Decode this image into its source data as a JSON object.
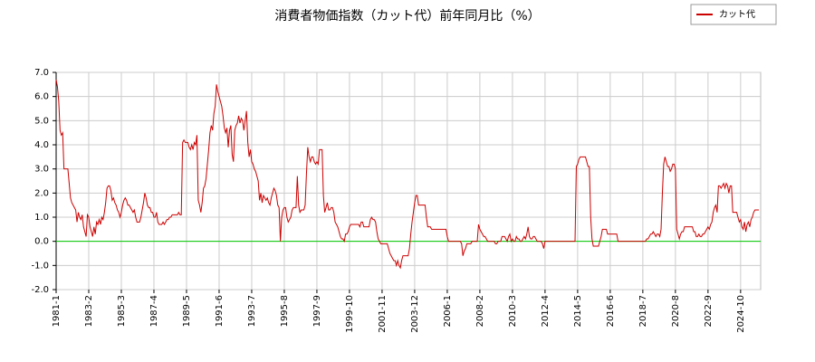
{
  "chart_data": {
    "type": "line",
    "title": "消費者物価指数（カット代）前年同月比（%）",
    "categories": [
      "1981-1",
      null,
      null,
      null,
      null,
      null,
      null,
      null,
      null,
      null,
      null,
      null,
      null,
      null,
      null,
      null,
      null,
      null,
      null,
      null,
      null,
      null,
      null,
      null,
      null,
      "1983-2",
      null,
      null,
      null,
      null,
      null,
      null,
      null,
      null,
      null,
      null,
      null,
      null,
      null,
      null,
      null,
      null,
      null,
      null,
      null,
      null,
      null,
      null,
      null,
      null,
      "1985-3",
      null,
      null,
      null,
      null,
      null,
      null,
      null,
      null,
      null,
      null,
      null,
      null,
      null,
      null,
      null,
      null,
      null,
      null,
      null,
      null,
      null,
      null,
      null,
      null,
      "1987-4",
      null,
      null,
      null,
      null,
      null,
      null,
      null,
      null,
      null,
      null,
      null,
      null,
      null,
      null,
      null,
      null,
      null,
      null,
      null,
      null,
      null,
      null,
      null,
      null,
      "1989-5",
      null,
      null,
      null,
      null,
      null,
      null,
      null,
      null,
      null,
      null,
      null,
      null,
      null,
      null,
      null,
      null,
      null,
      null,
      null,
      null,
      null,
      null,
      null,
      null,
      "1991-6",
      null,
      null,
      null,
      null,
      null,
      null,
      null,
      null,
      null,
      null,
      null,
      null,
      null,
      null,
      null,
      null,
      null,
      null,
      null,
      null,
      null,
      null,
      null,
      null,
      "1993-7",
      null,
      null,
      null,
      null,
      null,
      null,
      null,
      null,
      null,
      null,
      null,
      null,
      null,
      null,
      null,
      null,
      null,
      null,
      null,
      null,
      null,
      null,
      null,
      null,
      "1995-8",
      null,
      null,
      null,
      null,
      null,
      null,
      null,
      null,
      null,
      null,
      null,
      null,
      null,
      null,
      null,
      null,
      null,
      null,
      null,
      null,
      null,
      null,
      null,
      null,
      "1997-9",
      null,
      null,
      null,
      null,
      null,
      null,
      null,
      null,
      null,
      null,
      null,
      null,
      null,
      null,
      null,
      null,
      null,
      null,
      null,
      null,
      null,
      null,
      null,
      null,
      "1999-10",
      null,
      null,
      null,
      null,
      null,
      null,
      null,
      null,
      null,
      null,
      null,
      null,
      null,
      null,
      null,
      null,
      null,
      null,
      null,
      null,
      null,
      null,
      null,
      null,
      "2001-11",
      null,
      null,
      null,
      null,
      null,
      null,
      null,
      null,
      null,
      null,
      null,
      null,
      null,
      null,
      null,
      null,
      null,
      null,
      null,
      null,
      null,
      null,
      null,
      null,
      "2003-12",
      null,
      null,
      null,
      null,
      null,
      null,
      null,
      null,
      null,
      null,
      null,
      null,
      null,
      null,
      null,
      null,
      null,
      null,
      null,
      null,
      null,
      null,
      null,
      null,
      "2006-1",
      null,
      null,
      null,
      null,
      null,
      null,
      null,
      null,
      null,
      null,
      null,
      null,
      null,
      null,
      null,
      null,
      null,
      null,
      null,
      null,
      null,
      null,
      null,
      null,
      "2008-2",
      null,
      null,
      null,
      null,
      null,
      null,
      null,
      null,
      null,
      null,
      null,
      null,
      null,
      null,
      null,
      null,
      null,
      null,
      null,
      null,
      null,
      null,
      null,
      null,
      "2010-3",
      null,
      null,
      null,
      null,
      null,
      null,
      null,
      null,
      null,
      null,
      null,
      null,
      null,
      null,
      null,
      null,
      null,
      null,
      null,
      null,
      null,
      null,
      null,
      null,
      "2012-4",
      null,
      null,
      null,
      null,
      null,
      null,
      null,
      null,
      null,
      null,
      null,
      null,
      null,
      null,
      null,
      null,
      null,
      null,
      null,
      null,
      null,
      null,
      null,
      null,
      "2014-5",
      null,
      null,
      null,
      null,
      null,
      null,
      null,
      null,
      null,
      null,
      null,
      null,
      null,
      null,
      null,
      null,
      null,
      null,
      null,
      null,
      null,
      null,
      null,
      null,
      "2016-6",
      null,
      null,
      null,
      null,
      null,
      null,
      null,
      null,
      null,
      null,
      null,
      null,
      null,
      null,
      null,
      null,
      null,
      null,
      null,
      null,
      null,
      null,
      null,
      null,
      "2018-7",
      null,
      null,
      null,
      null,
      null,
      null,
      null,
      null,
      null,
      null,
      null,
      null,
      null,
      null,
      null,
      null,
      null,
      null,
      null,
      null,
      null,
      null,
      null,
      null,
      "2020-8",
      null,
      null,
      null,
      null,
      null,
      null,
      null,
      null,
      null,
      null,
      null,
      null,
      null,
      null,
      null,
      null,
      null,
      null,
      null,
      null,
      null,
      null,
      null,
      null,
      "2022-9",
      null,
      null,
      null,
      null,
      null,
      null,
      null,
      null,
      null,
      null,
      null,
      null,
      null,
      null,
      null,
      null,
      null,
      null,
      null,
      null,
      null,
      null,
      null,
      null,
      "2024-10",
      null,
      null,
      null,
      null,
      null,
      null,
      null,
      null,
      null,
      null,
      null,
      null,
      null,
      null
    ],
    "series": [
      {
        "name": "カット代",
        "color": "#cc0000",
        "values": [
          6.7,
          6.4,
          5.8,
          4.6,
          4.4,
          4.5,
          3.0,
          3.0,
          3.0,
          3.0,
          2.4,
          1.8,
          1.6,
          1.5,
          1.4,
          1.3,
          0.8,
          1.2,
          1.0,
          0.9,
          1.1,
          0.6,
          0.4,
          0.2,
          1.1,
          1.0,
          0.6,
          0.4,
          0.2,
          0.6,
          0.3,
          0.8,
          0.7,
          0.9,
          0.7,
          1.0,
          0.9,
          1.2,
          1.6,
          2.2,
          2.3,
          2.3,
          2.1,
          1.7,
          1.8,
          1.6,
          1.5,
          1.3,
          1.2,
          1.0,
          1.2,
          1.5,
          1.7,
          1.8,
          1.7,
          1.5,
          1.5,
          1.4,
          1.3,
          1.2,
          1.3,
          1.0,
          0.8,
          0.8,
          0.8,
          1.0,
          1.3,
          1.6,
          2.0,
          1.8,
          1.5,
          1.4,
          1.4,
          1.2,
          1.2,
          1.0,
          1.0,
          1.2,
          0.8,
          0.7,
          0.7,
          0.7,
          0.8,
          0.7,
          0.8,
          0.9,
          0.9,
          1.0,
          1.0,
          1.1,
          1.1,
          1.1,
          1.1,
          1.1,
          1.2,
          1.1,
          1.1,
          4.1,
          4.2,
          4.1,
          4.1,
          4.1,
          3.9,
          3.8,
          4.0,
          3.8,
          4.1,
          4.0,
          4.4,
          1.7,
          1.5,
          1.2,
          1.6,
          2.2,
          2.3,
          2.6,
          3.2,
          3.8,
          4.5,
          4.8,
          4.6,
          5.3,
          5.6,
          6.5,
          6.2,
          6.0,
          5.8,
          5.6,
          5.2,
          4.7,
          4.5,
          4.7,
          3.9,
          4.6,
          4.8,
          3.6,
          3.3,
          4.6,
          4.8,
          4.9,
          5.2,
          4.9,
          5.1,
          5.0,
          4.6,
          5.0,
          5.4,
          4.1,
          3.5,
          3.8,
          3.3,
          3.2,
          3.0,
          2.9,
          2.7,
          2.5,
          1.7,
          2.0,
          1.6,
          1.9,
          1.8,
          1.7,
          1.8,
          1.6,
          1.5,
          1.8,
          2.0,
          2.2,
          2.1,
          1.9,
          1.5,
          1.4,
          0.0,
          1.0,
          1.3,
          1.4,
          1.4,
          1.0,
          0.8,
          0.9,
          1.0,
          1.3,
          1.4,
          1.4,
          1.4,
          2.7,
          1.5,
          1.2,
          1.3,
          1.3,
          1.3,
          1.5,
          2.8,
          3.9,
          3.5,
          3.3,
          3.5,
          3.5,
          3.3,
          3.2,
          3.3,
          3.2,
          3.8,
          3.8,
          3.8,
          1.9,
          1.2,
          1.4,
          1.6,
          1.3,
          1.3,
          1.4,
          1.4,
          1.2,
          0.8,
          0.7,
          0.6,
          0.4,
          0.2,
          0.1,
          0.1,
          0.0,
          0.3,
          0.3,
          0.4,
          0.6,
          0.7,
          0.7,
          0.7,
          0.7,
          0.7,
          0.7,
          0.7,
          0.6,
          0.8,
          0.8,
          0.6,
          0.6,
          0.6,
          0.6,
          0.6,
          0.9,
          1.0,
          0.9,
          0.9,
          0.8,
          0.4,
          0.1,
          0.0,
          -0.1,
          -0.1,
          -0.1,
          -0.1,
          -0.1,
          -0.1,
          -0.3,
          -0.5,
          -0.6,
          -0.7,
          -0.8,
          -0.8,
          -1.0,
          -0.8,
          -1.0,
          -1.1,
          -0.8,
          -0.6,
          -0.6,
          -0.6,
          -0.6,
          -0.6,
          -0.3,
          0.3,
          0.8,
          1.2,
          1.6,
          1.9,
          1.9,
          1.5,
          1.5,
          1.5,
          1.5,
          1.5,
          1.5,
          1.0,
          0.6,
          0.6,
          0.6,
          0.5,
          0.5,
          0.5,
          0.5,
          0.5,
          0.5,
          0.5,
          0.5,
          0.5,
          0.5,
          0.5,
          0.5,
          0.2,
          0.0,
          0.0,
          0.0,
          0.0,
          0.0,
          0.0,
          0.0,
          0.0,
          0.0,
          0.0,
          -0.1,
          -0.6,
          -0.4,
          -0.3,
          -0.1,
          -0.1,
          -0.1,
          -0.1,
          0.0,
          0.0,
          0.0,
          0.0,
          0.0,
          0.7,
          0.5,
          0.4,
          0.3,
          0.2,
          0.2,
          0.1,
          0.0,
          0.0,
          0.0,
          0.0,
          0.0,
          0.0,
          -0.1,
          -0.1,
          0.0,
          0.0,
          0.0,
          0.2,
          0.2,
          0.2,
          0.1,
          0.0,
          0.2,
          0.3,
          0.0,
          0.1,
          0.0,
          0.0,
          0.2,
          0.1,
          0.1,
          0.0,
          0.0,
          0.1,
          0.2,
          0.1,
          0.3,
          0.6,
          0.2,
          0.1,
          0.1,
          0.2,
          0.2,
          0.1,
          0.0,
          0.0,
          0.0,
          0.0,
          -0.1,
          -0.3,
          0.0,
          0.0,
          0.0,
          0.0,
          0.0,
          0.0,
          0.0,
          0.0,
          0.0,
          0.0,
          0.0,
          0.0,
          0.0,
          0.0,
          0.0,
          0.0,
          0.0,
          0.0,
          0.0,
          0.0,
          0.0,
          0.0,
          0.0,
          0.0,
          3.1,
          3.2,
          3.4,
          3.5,
          3.5,
          3.5,
          3.5,
          3.5,
          3.3,
          3.1,
          3.1,
          1.0,
          0.1,
          -0.2,
          -0.2,
          -0.2,
          -0.2,
          -0.2,
          0.0,
          0.2,
          0.5,
          0.5,
          0.5,
          0.5,
          0.3,
          0.3,
          0.3,
          0.3,
          0.3,
          0.3,
          0.3,
          0.3,
          0.0,
          0.0,
          0.0,
          0.0,
          0.0,
          0.0,
          0.0,
          0.0,
          0.0,
          0.0,
          0.0,
          0.0,
          0.0,
          0.0,
          0.0,
          0.0,
          0.0,
          0.0,
          0.0,
          0.0,
          0.0,
          0.0,
          0.1,
          0.1,
          0.2,
          0.3,
          0.3,
          0.4,
          0.3,
          0.2,
          0.3,
          0.3,
          0.2,
          0.5,
          2.0,
          3.2,
          3.5,
          3.3,
          3.1,
          3.1,
          2.9,
          3.0,
          3.2,
          3.2,
          3.0,
          0.5,
          0.3,
          0.1,
          0.3,
          0.4,
          0.4,
          0.6,
          0.6,
          0.6,
          0.6,
          0.6,
          0.6,
          0.6,
          0.4,
          0.4,
          0.2,
          0.2,
          0.3,
          0.2,
          0.2,
          0.3,
          0.3,
          0.4,
          0.5,
          0.6,
          0.5,
          0.7,
          0.8,
          1.2,
          1.4,
          1.5,
          1.2,
          2.3,
          2.3,
          2.2,
          2.3,
          2.4,
          2.2,
          2.4,
          2.3,
          2.0,
          2.3,
          2.3,
          1.2,
          1.2,
          1.2,
          1.2,
          1.0,
          0.8,
          0.9,
          0.6,
          0.5,
          0.8,
          0.4,
          0.7,
          0.8,
          0.6,
          0.9,
          1.0,
          1.2,
          1.3,
          1.3,
          1.3,
          1.3
        ]
      }
    ],
    "ylim": [
      -2,
      7
    ],
    "yticks": [
      {
        "value": -2,
        "label": "-2.0"
      },
      {
        "value": -1,
        "label": "-1.0"
      },
      {
        "value": 0,
        "label": "0.0"
      },
      {
        "value": 1,
        "label": "1.0"
      },
      {
        "value": 2,
        "label": "2.0"
      },
      {
        "value": 3,
        "label": "3.0"
      },
      {
        "value": 4,
        "label": "4.0"
      },
      {
        "value": 5,
        "label": "5.0"
      },
      {
        "value": 6,
        "label": "6.0"
      },
      {
        "value": 7,
        "label": "7.0"
      }
    ],
    "grid": true,
    "zero_line_color": "#00cc00",
    "legend": "upper right"
  }
}
